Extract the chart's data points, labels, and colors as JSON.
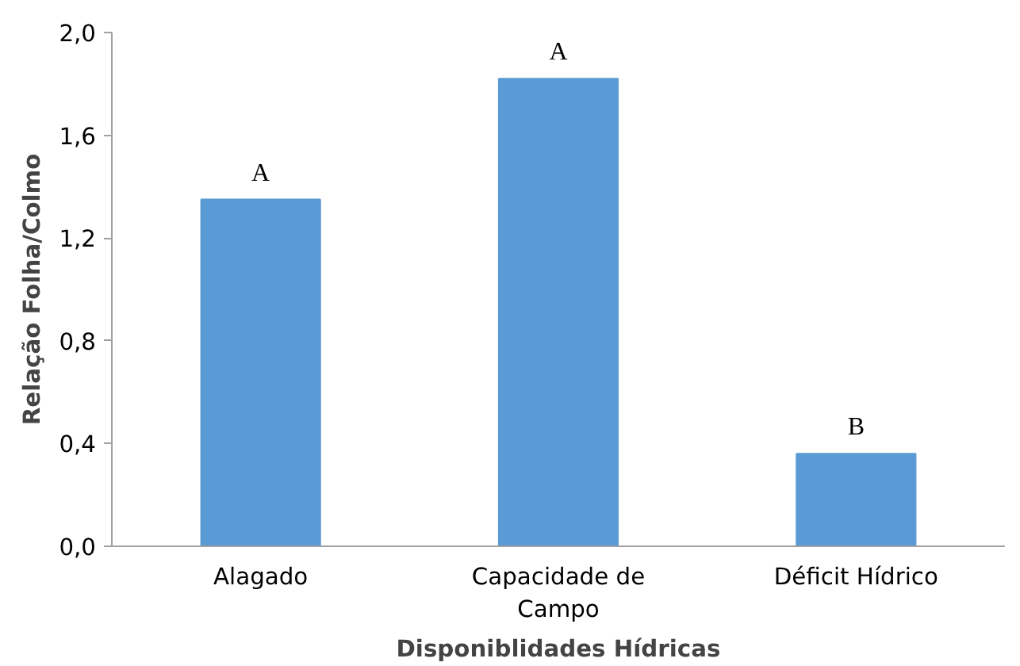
{
  "chart_data": {
    "type": "bar",
    "xlabel": "Disponiblidades Hídricas",
    "ylabel": "Relação Folha/Colmo",
    "categories": [
      "Alagado",
      "Capacidade de Campo",
      "Déficit Hídrico"
    ],
    "values": [
      1.35,
      1.82,
      0.36
    ],
    "color": "#5b9bd5",
    "ylim": [
      0,
      2.0
    ],
    "yticks": [
      {
        "value": 0,
        "label": "0,0"
      },
      {
        "value": 0.4,
        "label": "0,4"
      },
      {
        "value": 0.8,
        "label": "0,8"
      },
      {
        "value": 1.2,
        "label": "1,2"
      },
      {
        "value": 1.6,
        "label": "1,6"
      },
      {
        "value": 2.0,
        "label": "2,0"
      }
    ],
    "grid": false,
    "annotations": [
      {
        "text": "A",
        "x": "Alagado",
        "y": 1.35
      },
      {
        "text": "A",
        "x": "Capacidade de Campo",
        "y": 1.82
      },
      {
        "text": "B",
        "x": "Déficit Hídrico",
        "y": 0.36
      }
    ]
  }
}
